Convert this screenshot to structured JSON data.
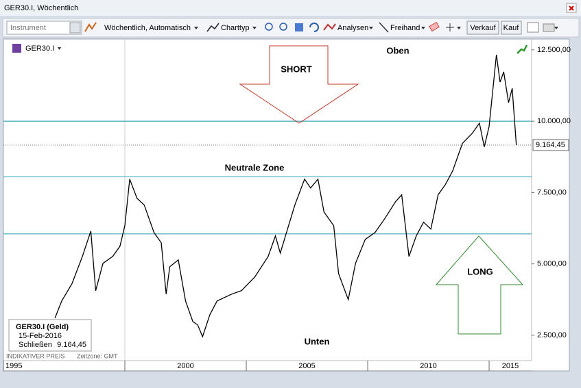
{
  "window": {
    "title": "GER30.I, Wöchentlich"
  },
  "toolbar": {
    "instrument_placeholder": "Instrument",
    "period": "Wöchentlich, Automatisch",
    "chart_type": "Charttyp",
    "analyses": "Analysen",
    "freehand": "Freihand",
    "sell": "Verkauf",
    "buy": "Kauf"
  },
  "chart_data": {
    "type": "line",
    "x": [
      1997.12,
      1997.4,
      1997.82,
      1998.25,
      1998.6,
      1998.8,
      1999.1,
      1999.5,
      1999.8,
      2000.0,
      2000.2,
      2000.5,
      2000.8,
      2001.2,
      2001.5,
      2001.7,
      2001.85,
      2002.2,
      2002.5,
      2002.8,
      2003.0,
      2003.2,
      2003.5,
      2003.8,
      2004.4,
      2004.8,
      2005.35,
      2005.9,
      2006.2,
      2006.4,
      2006.7,
      2007.0,
      2007.4,
      2007.65,
      2007.95,
      2008.2,
      2008.6,
      2008.8,
      2009.2,
      2009.5,
      2009.9,
      2010.3,
      2010.7,
      2011.15,
      2011.4,
      2011.7,
      2012.0,
      2012.3,
      2012.6,
      2012.9,
      2013.2,
      2013.5,
      2013.9,
      2014.3,
      2014.6,
      2014.8,
      2015.0,
      2015.3,
      2015.45,
      2015.6,
      2015.8,
      2015.95,
      2016.12
    ],
    "series": [
      {
        "name": "GER30.I",
        "color": "#000000",
        "values": [
          3100,
          3700,
          4300,
          5260,
          6150,
          4060,
          5020,
          5260,
          5620,
          6340,
          7970,
          7300,
          7060,
          6100,
          5740,
          3940,
          4900,
          5140,
          3700,
          2980,
          2860,
          2450,
          3220,
          3700,
          3940,
          4060,
          4540,
          5260,
          5980,
          5380,
          6220,
          7060,
          7970,
          7660,
          7970,
          6820,
          6340,
          4660,
          3750,
          5020,
          5860,
          6100,
          6580,
          7180,
          7420,
          5260,
          5980,
          6460,
          6220,
          7420,
          7780,
          8260,
          9220,
          9570,
          9930,
          9100,
          9810,
          12330,
          11370,
          11730,
          10650,
          11150,
          9164.45
        ]
      }
    ],
    "xlim": [
      1995,
      2016.75
    ],
    "xticks": [
      1995,
      2000,
      2005,
      2010,
      2015
    ],
    "ylim": [
      1610,
      12880
    ],
    "yticks": [
      {
        "value": 2500,
        "label": "2.500,00"
      },
      {
        "value": 5000,
        "label": "5.000,00"
      },
      {
        "value": 7500,
        "label": "7.500,00"
      },
      {
        "value": 10000,
        "label": "10.000,00"
      },
      {
        "value": 12500,
        "label": "12.500,00"
      }
    ],
    "levels": [
      10000,
      8050,
      6050
    ],
    "level_color": "#3aa6b9",
    "last_price": {
      "value": 9164.45,
      "label": "9.164,45"
    },
    "annotations": {
      "short": "SHORT",
      "long": "LONG",
      "top": "Oben",
      "bottom": "Unten",
      "neutral": "Neutrale Zone"
    }
  },
  "info_box": {
    "title": "GER30.I (Geld)",
    "date": "15-Feb-2016",
    "close_label": "Schließen"
  },
  "footer": {
    "price_note": "INDIKATIVER PREIS",
    "timezone": "Zeitzone: GMT"
  }
}
